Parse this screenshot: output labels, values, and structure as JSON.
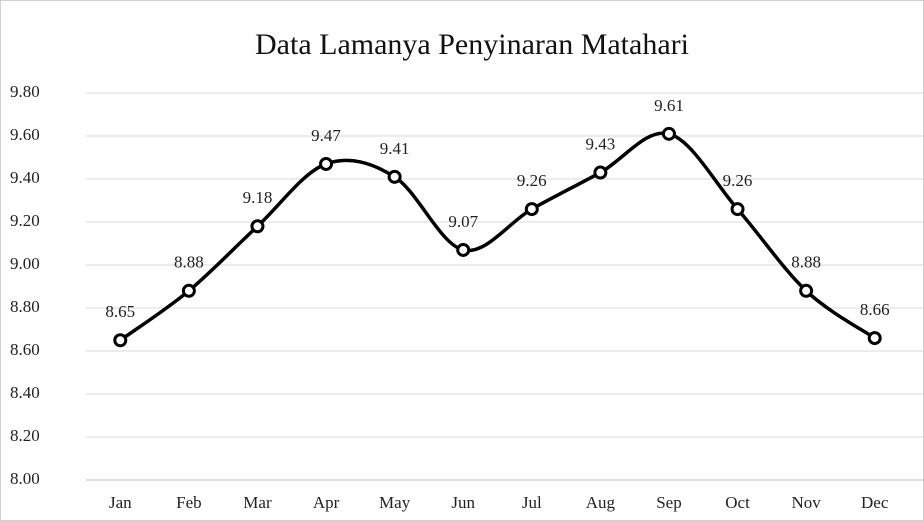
{
  "chart_data": {
    "type": "line",
    "title": "Data Lamanya Penyinaran Matahari",
    "categories": [
      "Jan",
      "Feb",
      "Mar",
      "Apr",
      "May",
      "Jun",
      "Jul",
      "Aug",
      "Sep",
      "Oct",
      "Nov",
      "Dec"
    ],
    "values": [
      8.65,
      8.88,
      9.18,
      9.47,
      9.41,
      9.07,
      9.26,
      9.43,
      9.61,
      9.26,
      8.88,
      8.66
    ],
    "color": "#000000",
    "ylim": [
      8.0,
      9.8
    ],
    "yticks": [
      {
        "value": 8.0,
        "label": "8.00"
      },
      {
        "value": 8.2,
        "label": "8.20"
      },
      {
        "value": 8.4,
        "label": "8.40"
      },
      {
        "value": 8.6,
        "label": "8.60"
      },
      {
        "value": 8.8,
        "label": "8.80"
      },
      {
        "value": 9.0,
        "label": "9.00"
      },
      {
        "value": 9.2,
        "label": "9.20"
      },
      {
        "value": 9.4,
        "label": "9.40"
      },
      {
        "value": 9.6,
        "label": "9.60"
      },
      {
        "value": 9.8,
        "label": "9.80"
      }
    ],
    "grid": true,
    "smooth": true,
    "markers": true,
    "data_labels": true
  }
}
